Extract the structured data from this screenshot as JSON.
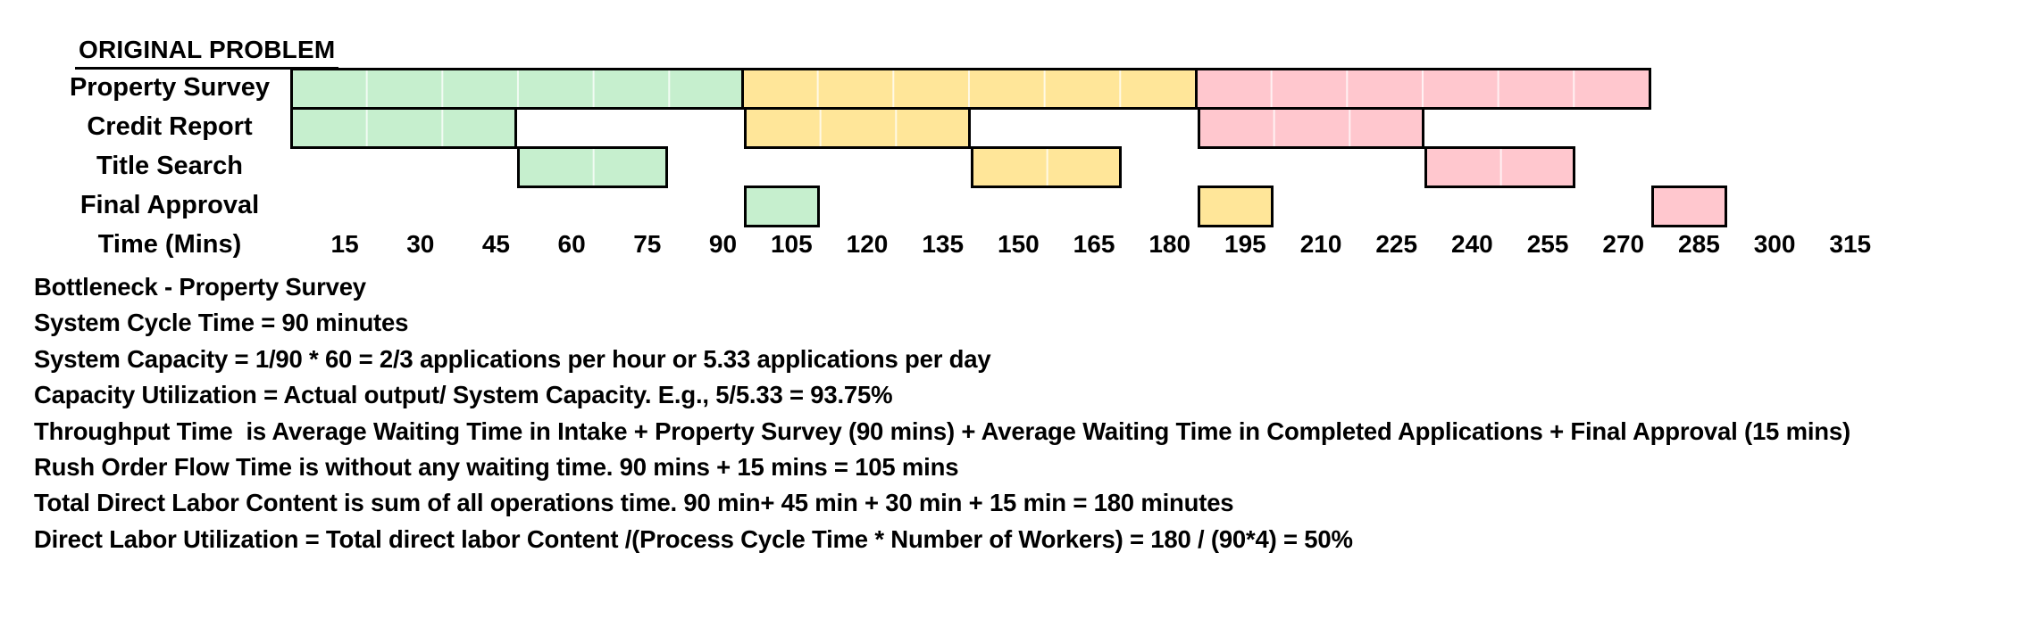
{
  "title": "ORIGINAL PROBLEM",
  "chart_data": {
    "type": "gantt",
    "unit": "minutes",
    "axis_label": "Time (Mins)",
    "ticks": [
      15,
      30,
      45,
      60,
      75,
      90,
      105,
      120,
      135,
      150,
      165,
      180,
      195,
      210,
      225,
      240,
      255,
      270,
      285,
      300,
      315
    ],
    "tick_step": 15,
    "xlim": [
      0,
      315
    ],
    "colors": {
      "green": "#C6EFCE",
      "yellow": "#FFE699",
      "pink": "#FFC7CE"
    },
    "tasks": [
      {
        "label": "Property Survey",
        "segments": [
          {
            "color": "green",
            "start": 0,
            "end": 90
          },
          {
            "color": "yellow",
            "start": 90,
            "end": 180
          },
          {
            "color": "pink",
            "start": 180,
            "end": 270
          }
        ]
      },
      {
        "label": "Credit Report",
        "segments": [
          {
            "color": "green",
            "start": 0,
            "end": 45
          },
          {
            "color": "yellow",
            "start": 90,
            "end": 135
          },
          {
            "color": "pink",
            "start": 180,
            "end": 225
          }
        ]
      },
      {
        "label": "Title Search",
        "segments": [
          {
            "color": "green",
            "start": 45,
            "end": 75
          },
          {
            "color": "yellow",
            "start": 135,
            "end": 165
          },
          {
            "color": "pink",
            "start": 225,
            "end": 255
          }
        ]
      },
      {
        "label": "Final Approval",
        "segments": [
          {
            "color": "green",
            "start": 90,
            "end": 105
          },
          {
            "color": "yellow",
            "start": 180,
            "end": 195
          },
          {
            "color": "pink",
            "start": 270,
            "end": 285
          }
        ]
      }
    ]
  },
  "notes": [
    "Bottleneck - Property Survey",
    "System Cycle Time = 90 minutes",
    "System Capacity = 1/90 * 60 = 2/3 applications per hour or 5.33 applications per day",
    "Capacity Utilization = Actual output/ System Capacity. E.g., 5/5.33 = 93.75%",
    "Throughput Time  is Average Waiting Time in Intake + Property Survey (90 mins) + Average Waiting Time in Completed Applications + Final Approval (15 mins)",
    "Rush Order Flow Time is without any waiting time. 90 mins + 15 mins = 105 mins",
    "Total Direct Labor Content is sum of all operations time. 90 min+ 45 min + 30 min + 15 min = 180 minutes",
    "Direct Labor Utilization = Total direct labor Content /(Process Cycle Time * Number of Workers) = 180 / (90*4) = 50%"
  ]
}
